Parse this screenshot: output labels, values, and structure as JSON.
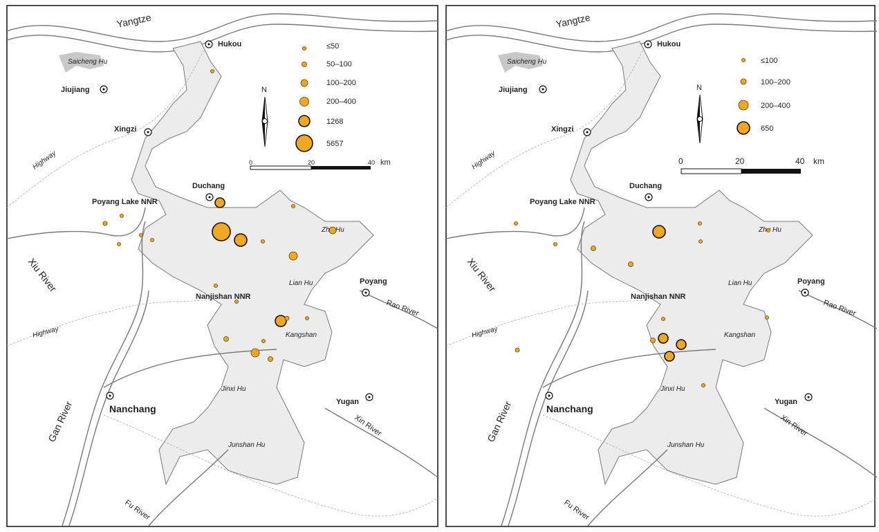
{
  "panels": [
    {
      "places": [
        "Yangtze",
        "Hukou",
        "Saicheng Hu",
        "Jiujiang",
        "Xingzi",
        "Highway",
        "Duchang",
        "Poyang Lake NNR",
        "Zhu Hu",
        "Xiu River",
        "Lian Hu",
        "Poyang",
        "Nanjishan NNR",
        "Rao River",
        "Highway",
        "Kangshan",
        "Jinxi Hu",
        "Nanchang",
        "Yugan",
        "Xin River",
        "Gan River",
        "Junshan Hu",
        "Fu River"
      ],
      "legend": [
        "≤50",
        "50–100",
        "100–200",
        "200–400",
        "1268",
        "5657"
      ],
      "north": "N",
      "scale": {
        "ticks": [
          "0",
          "20",
          "40"
        ],
        "unit": "km"
      }
    },
    {
      "places": [
        "Yangtze",
        "Hukou",
        "Saicheng Hu",
        "Jiujiang",
        "Xingzi",
        "Highway",
        "Duchang",
        "Poyang Lake NNR",
        "Zhu Hu",
        "Xiu River",
        "Lian Hu",
        "Poyang",
        "Nanjishan NNR",
        "Rao River",
        "Highway",
        "Kangshan",
        "Jinxi Hu",
        "Nanchang",
        "Yugan",
        "Xin River",
        "Gan River",
        "Junshan Hu",
        "Fu River"
      ],
      "legend": [
        "≤100",
        "100–200",
        "200–400",
        "650"
      ],
      "north": "N",
      "scale": {
        "ticks": [
          "0",
          "20",
          "40"
        ],
        "unit": "km"
      }
    }
  ]
}
